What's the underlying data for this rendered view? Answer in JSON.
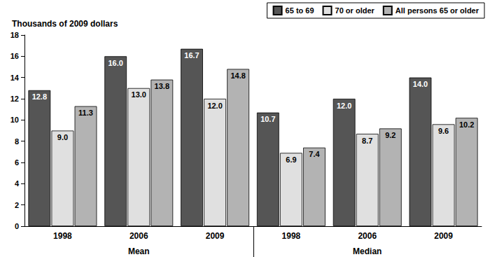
{
  "chart_data": {
    "type": "bar",
    "y_label": "Thousands of 2009 dollars",
    "categories": [
      "1998",
      "2006",
      "2009",
      "1998",
      "2006",
      "2009"
    ],
    "category_groups": [
      "Mean",
      "Mean",
      "Mean",
      "Median",
      "Median",
      "Median"
    ],
    "series": [
      {
        "name": "65 to 69",
        "color": "#555555",
        "values": [
          12.8,
          16.0,
          16.7,
          10.7,
          12.0,
          14.0
        ],
        "value_labels": [
          "12.8",
          "16.0",
          "16.7",
          "10.7",
          "12.0",
          "14.0"
        ]
      },
      {
        "name": "70 or older",
        "color": "#e0e0e0",
        "values": [
          9.0,
          13.0,
          12.0,
          6.9,
          8.7,
          9.6
        ],
        "value_labels": [
          "9.0",
          "13.0",
          "12.0",
          "6.9",
          "8.7",
          "9.6"
        ]
      },
      {
        "name": "All persons 65 or older",
        "color": "#b3b3b3",
        "values": [
          11.3,
          13.8,
          14.8,
          7.4,
          9.2,
          10.2
        ],
        "value_labels": [
          "11.3",
          "13.8",
          "14.8",
          "7.4",
          "9.2",
          "10.2"
        ]
      }
    ],
    "ylim": [
      0,
      18
    ],
    "yticks": [
      0,
      2,
      4,
      6,
      8,
      10,
      12,
      14,
      16,
      18
    ],
    "grid": false,
    "legend": "top-right",
    "data_labels": true
  }
}
